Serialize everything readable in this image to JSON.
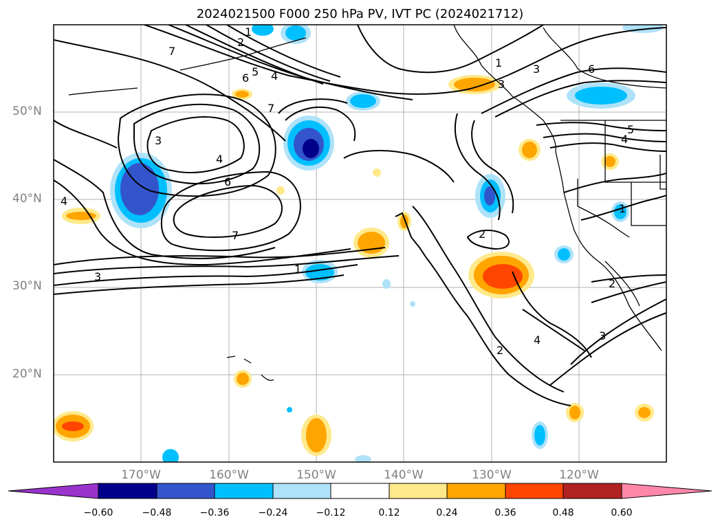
{
  "title": "2024021500 F000 250 hPa PV, IVT PC (2024021712)",
  "lat_labels": [
    "50°N",
    "40°N",
    "30°N",
    "20°N"
  ],
  "lon_labels": [
    "170°W",
    "160°W",
    "150°W",
    "140°W",
    "130°W",
    "120°W"
  ],
  "colorbar": {
    "ticks": [
      "−0.60",
      "−0.48",
      "−0.36",
      "−0.24",
      "−0.12",
      "0.12",
      "0.24",
      "0.36",
      "0.48",
      "0.60"
    ],
    "colors": [
      "#9933cc",
      "#00008b",
      "#3355cc",
      "#00bfff",
      "#aee2f8",
      "#ffffff",
      "#ffe98a",
      "#ffa500",
      "#ff4500",
      "#b22222",
      "#ff88aa"
    ]
  },
  "contour_labels": [
    "7",
    "2",
    "1",
    "5",
    "6",
    "4",
    "3",
    "4",
    "6",
    "7",
    "3",
    "4",
    "1",
    "3",
    "1",
    "3",
    "6",
    "5",
    "4",
    "1",
    "2",
    "2",
    "2",
    "4",
    "3",
    "7"
  ]
}
